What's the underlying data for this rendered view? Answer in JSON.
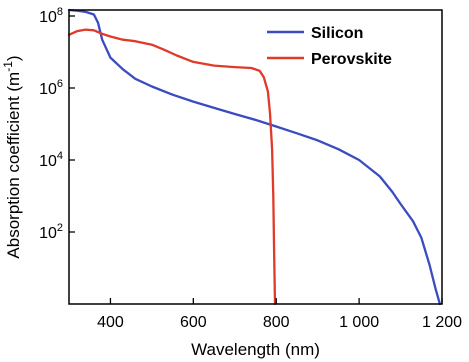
{
  "chart_data": {
    "type": "line",
    "xlabel": "Wavelength (nm)",
    "ylabel": "Absorption coefficient (m",
    "ylabel_sup": "-1",
    "ylabel_tail": ")",
    "xlim": [
      300,
      1200
    ],
    "ylim": [
      1,
      100000000
    ],
    "yscale": "log",
    "x_ticks": [
      {
        "value": 400,
        "label": "400"
      },
      {
        "value": 600,
        "label": "600"
      },
      {
        "value": 800,
        "label": "800"
      },
      {
        "value": 1000,
        "label": "1 000"
      },
      {
        "value": 1200,
        "label": "1 200"
      }
    ],
    "y_ticks": [
      {
        "value": 100,
        "base": "10",
        "exp": "2"
      },
      {
        "value": 10000,
        "base": "10",
        "exp": "4"
      },
      {
        "value": 1000000,
        "base": "10",
        "exp": "6"
      },
      {
        "value": 100000000,
        "base": "10",
        "exp": "8"
      }
    ],
    "legend_position": "top-right",
    "grid": false,
    "series": [
      {
        "name": "Silicon",
        "color": "#3a4cc0",
        "x": [
          300,
          320,
          340,
          360,
          370,
          380,
          400,
          430,
          460,
          500,
          550,
          600,
          650,
          700,
          750,
          800,
          850,
          900,
          950,
          1000,
          1050,
          1080,
          1100,
          1130,
          1150,
          1170,
          1185,
          1195
        ],
        "y": [
          150000000,
          140000000,
          130000000,
          110000000,
          65000000,
          22000000,
          7000000,
          3300000,
          1800000,
          1100000,
          650000,
          420000,
          280000,
          190000,
          130000,
          85000,
          55000,
          35000,
          20000,
          10000,
          3500,
          1300,
          600,
          200,
          70,
          12,
          2.5,
          1
        ]
      },
      {
        "name": "Perovskite",
        "color": "#e03a2a",
        "x": [
          300,
          320,
          340,
          360,
          380,
          400,
          430,
          460,
          500,
          530,
          560,
          600,
          650,
          700,
          740,
          760,
          770,
          780,
          785,
          790,
          793,
          795,
          797
        ],
        "y": [
          30000000,
          38000000,
          42000000,
          40000000,
          32000000,
          27000000,
          22000000,
          20000000,
          16000000,
          11500000,
          8000000,
          5300000,
          4200000,
          3800000,
          3600000,
          3000000,
          2000000,
          800000,
          200000,
          20000,
          1000,
          30,
          1
        ]
      }
    ]
  }
}
